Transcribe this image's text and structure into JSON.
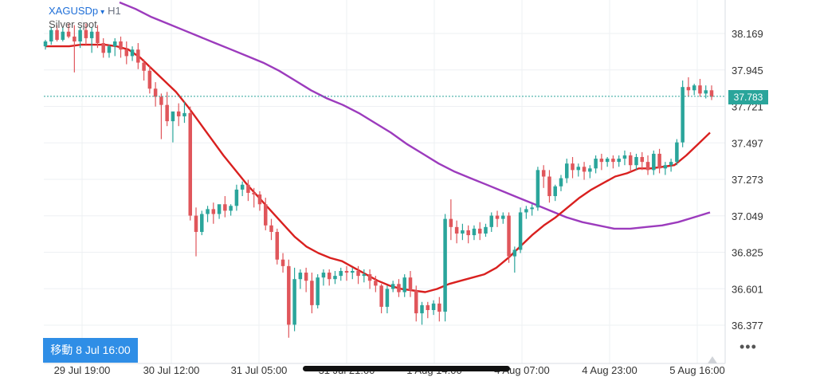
{
  "header": {
    "symbol": "XAGUSDp",
    "dropdown_glyph": "▾",
    "timeframe": "H1",
    "description": "Silver spot"
  },
  "navigate_badge": "移動 8 Jul 16:00",
  "more_glyph": "•••",
  "current_price": "37.783",
  "colors": {
    "up": "#2aa59b",
    "down": "#e0565b",
    "ma_fast": "#d9201f",
    "ma_slow": "#9c3bbd",
    "grid": "#eef0f3",
    "price_line": "#2aa59b",
    "axis_text": "#333333"
  },
  "icons": {
    "scroll_marker": "triangle-up-icon"
  },
  "chart_data": {
    "type": "candlestick",
    "title": "XAGUSDp H1",
    "ylim": [
      36.22,
      38.36
    ],
    "grid": true,
    "y_ticks": [
      "38.169",
      "37.945",
      "37.721",
      "37.497",
      "37.273",
      "37.049",
      "36.825",
      "36.601",
      "36.377"
    ],
    "x_ticks": [
      "29 Jul 19:00",
      "30 Jul 12:00",
      "31 Jul 05:00",
      "31 Jul 21:00",
      "1 Aug 14:00",
      "4 Aug 07:00",
      "4 Aug 23:00",
      "5 Aug 16:00"
    ],
    "current_price": 37.783,
    "candles": [
      [
        38.09,
        38.13,
        38.12,
        38.07
      ],
      [
        38.12,
        38.21,
        38.19,
        38.1
      ],
      [
        38.19,
        38.22,
        38.13,
        38.12
      ],
      [
        38.13,
        38.21,
        38.18,
        38.12
      ],
      [
        38.18,
        38.23,
        38.15,
        38.14
      ],
      [
        38.15,
        38.22,
        38.12,
        37.93
      ],
      [
        38.12,
        38.21,
        38.19,
        38.08
      ],
      [
        38.19,
        38.23,
        38.14,
        38.1
      ],
      [
        38.14,
        38.21,
        38.18,
        38.05
      ],
      [
        38.18,
        38.22,
        38.11,
        38.08
      ],
      [
        38.11,
        38.14,
        38.05,
        38.02
      ],
      [
        38.05,
        38.1,
        38.09,
        38.02
      ],
      [
        38.09,
        38.14,
        38.12,
        38.03
      ],
      [
        38.12,
        38.15,
        38.07,
        38.02
      ],
      [
        38.07,
        38.12,
        38.03,
        37.98
      ],
      [
        38.03,
        38.09,
        38.07,
        38.0
      ],
      [
        38.07,
        38.11,
        37.99,
        37.95
      ],
      [
        37.99,
        38.01,
        37.94,
        37.88
      ],
      [
        37.94,
        37.97,
        37.83,
        37.8
      ],
      [
        37.83,
        37.87,
        37.78,
        37.72
      ],
      [
        37.78,
        37.8,
        37.73,
        37.52
      ],
      [
        37.73,
        37.81,
        37.63,
        37.6
      ],
      [
        37.63,
        37.68,
        37.69,
        37.5
      ],
      [
        37.69,
        37.74,
        37.66,
        37.6
      ],
      [
        37.66,
        37.75,
        37.68,
        37.62
      ],
      [
        37.68,
        37.72,
        37.05,
        37.02
      ],
      [
        37.05,
        37.1,
        36.95,
        36.8
      ],
      [
        36.95,
        37.08,
        37.06,
        36.93
      ],
      [
        37.06,
        37.11,
        37.09,
        37.01
      ],
      [
        37.09,
        37.13,
        37.06,
        37.0
      ],
      [
        37.06,
        37.1,
        37.12,
        37.03
      ],
      [
        37.12,
        37.17,
        37.08,
        37.04
      ],
      [
        37.08,
        37.12,
        37.11,
        37.05
      ],
      [
        37.11,
        37.24,
        37.21,
        37.08
      ],
      [
        37.21,
        37.26,
        37.24,
        37.17
      ],
      [
        37.24,
        37.27,
        37.19,
        37.14
      ],
      [
        37.19,
        37.22,
        37.18,
        37.1
      ],
      [
        37.18,
        37.2,
        37.12,
        37.08
      ],
      [
        37.12,
        37.16,
        36.99,
        36.96
      ],
      [
        36.99,
        37.03,
        36.95,
        36.9
      ],
      [
        36.95,
        36.97,
        36.78,
        36.75
      ],
      [
        36.78,
        36.82,
        36.74,
        36.7
      ],
      [
        36.74,
        36.78,
        36.38,
        36.3
      ],
      [
        36.38,
        36.73,
        36.66,
        36.34
      ],
      [
        36.66,
        36.72,
        36.7,
        36.6
      ],
      [
        36.7,
        36.73,
        36.65,
        36.58
      ],
      [
        36.65,
        36.7,
        36.5,
        36.45
      ],
      [
        36.5,
        36.69,
        36.67,
        36.48
      ],
      [
        36.67,
        36.72,
        36.7,
        36.62
      ],
      [
        36.7,
        36.72,
        36.66,
        36.62
      ],
      [
        36.66,
        36.71,
        36.68,
        36.63
      ],
      [
        36.68,
        36.73,
        36.71,
        36.65
      ],
      [
        36.71,
        36.74,
        36.7,
        36.65
      ],
      [
        36.7,
        36.73,
        36.71,
        36.66
      ],
      [
        36.71,
        36.74,
        36.68,
        36.63
      ],
      [
        36.68,
        36.72,
        36.69,
        36.64
      ],
      [
        36.69,
        36.72,
        36.65,
        36.6
      ],
      [
        36.65,
        36.68,
        36.62,
        36.58
      ],
      [
        36.62,
        36.63,
        36.49,
        36.45
      ],
      [
        36.49,
        36.62,
        36.6,
        36.45
      ],
      [
        36.6,
        36.65,
        36.63,
        36.58
      ],
      [
        36.63,
        36.66,
        36.58,
        36.55
      ],
      [
        36.58,
        36.69,
        36.67,
        36.55
      ],
      [
        36.67,
        36.71,
        36.59,
        36.55
      ],
      [
        36.59,
        36.62,
        36.45,
        36.4
      ],
      [
        36.45,
        36.52,
        36.5,
        36.38
      ],
      [
        36.5,
        36.52,
        36.47,
        36.42
      ],
      [
        36.47,
        36.53,
        36.51,
        36.44
      ],
      [
        36.51,
        36.55,
        36.46,
        36.4
      ],
      [
        36.46,
        37.06,
        37.03,
        36.4
      ],
      [
        37.03,
        37.15,
        36.98,
        36.9
      ],
      [
        36.98,
        37.02,
        36.94,
        36.88
      ],
      [
        36.94,
        37.0,
        36.96,
        36.9
      ],
      [
        36.96,
        36.99,
        36.93,
        36.88
      ],
      [
        36.93,
        36.99,
        36.97,
        36.9
      ],
      [
        36.97,
        37.01,
        36.94,
        36.9
      ],
      [
        36.94,
        37.0,
        36.98,
        36.92
      ],
      [
        36.98,
        37.07,
        37.05,
        36.95
      ],
      [
        37.05,
        37.08,
        37.03,
        36.98
      ],
      [
        37.03,
        37.07,
        37.05,
        37.0
      ],
      [
        37.05,
        37.07,
        36.8,
        36.76
      ],
      [
        36.8,
        36.86,
        36.84,
        36.7
      ],
      [
        36.84,
        37.1,
        37.07,
        36.82
      ],
      [
        37.07,
        37.11,
        37.09,
        37.03
      ],
      [
        37.09,
        37.12,
        37.1,
        37.05
      ],
      [
        37.1,
        37.35,
        37.33,
        37.08
      ],
      [
        37.33,
        37.36,
        37.29,
        37.22
      ],
      [
        37.29,
        37.33,
        37.17,
        37.13
      ],
      [
        37.17,
        37.24,
        37.23,
        37.14
      ],
      [
        37.23,
        37.3,
        37.28,
        37.2
      ],
      [
        37.28,
        37.4,
        37.37,
        37.25
      ],
      [
        37.37,
        37.41,
        37.33,
        37.28
      ],
      [
        37.33,
        37.37,
        37.35,
        37.29
      ],
      [
        37.35,
        37.38,
        37.32,
        37.27
      ],
      [
        37.32,
        37.36,
        37.34,
        37.28
      ],
      [
        37.34,
        37.42,
        37.4,
        37.31
      ],
      [
        37.4,
        37.43,
        37.38,
        37.33
      ],
      [
        37.38,
        37.41,
        37.4,
        37.35
      ],
      [
        37.4,
        37.42,
        37.38,
        37.34
      ],
      [
        37.38,
        37.42,
        37.4,
        37.35
      ],
      [
        37.4,
        37.45,
        37.42,
        37.36
      ],
      [
        37.42,
        37.44,
        37.36,
        37.32
      ],
      [
        37.36,
        37.43,
        37.41,
        37.33
      ],
      [
        37.41,
        37.44,
        37.38,
        37.33
      ],
      [
        37.38,
        37.42,
        37.33,
        37.3
      ],
      [
        37.33,
        37.45,
        37.43,
        37.3
      ],
      [
        37.43,
        37.46,
        37.34,
        37.31
      ],
      [
        37.34,
        37.38,
        37.36,
        37.3
      ],
      [
        37.36,
        37.4,
        37.38,
        37.32
      ],
      [
        37.38,
        37.52,
        37.5,
        37.36
      ],
      [
        37.5,
        37.88,
        37.84,
        37.47
      ],
      [
        37.84,
        37.9,
        37.82,
        37.78
      ],
      [
        37.82,
        37.86,
        37.85,
        37.79
      ],
      [
        37.85,
        37.89,
        37.8,
        37.78
      ],
      [
        37.8,
        37.85,
        37.82,
        37.77
      ],
      [
        37.82,
        37.85,
        37.78,
        37.76
      ]
    ],
    "ma_fast": [
      38.09,
      38.09,
      38.09,
      38.1,
      38.1,
      38.1,
      38.09,
      38.07,
      38.02,
      37.95,
      37.88,
      37.81,
      37.72,
      37.62,
      37.52,
      37.42,
      37.33,
      37.24,
      37.16,
      37.08,
      37.0,
      36.92,
      36.86,
      36.82,
      36.79,
      36.77,
      36.73,
      36.69,
      36.65,
      36.62,
      36.6,
      36.59,
      36.58,
      36.6,
      36.63,
      36.65,
      36.67,
      36.69,
      36.73,
      36.79,
      36.86,
      36.93,
      36.99,
      37.04,
      37.1,
      37.16,
      37.21,
      37.25,
      37.29,
      37.31,
      37.34,
      37.34,
      37.35,
      37.36,
      37.42,
      37.49,
      37.56
    ],
    "ma_slow": [
      38.36,
      38.32,
      38.27,
      38.23,
      38.19,
      38.15,
      38.11,
      38.07,
      38.03,
      37.99,
      37.94,
      37.88,
      37.82,
      37.77,
      37.73,
      37.68,
      37.62,
      37.56,
      37.49,
      37.43,
      37.37,
      37.32,
      37.28,
      37.24,
      37.2,
      37.16,
      37.12,
      37.08,
      37.04,
      37.01,
      36.99,
      36.97,
      36.97,
      36.98,
      36.99,
      37.01,
      37.04,
      37.07
    ]
  }
}
